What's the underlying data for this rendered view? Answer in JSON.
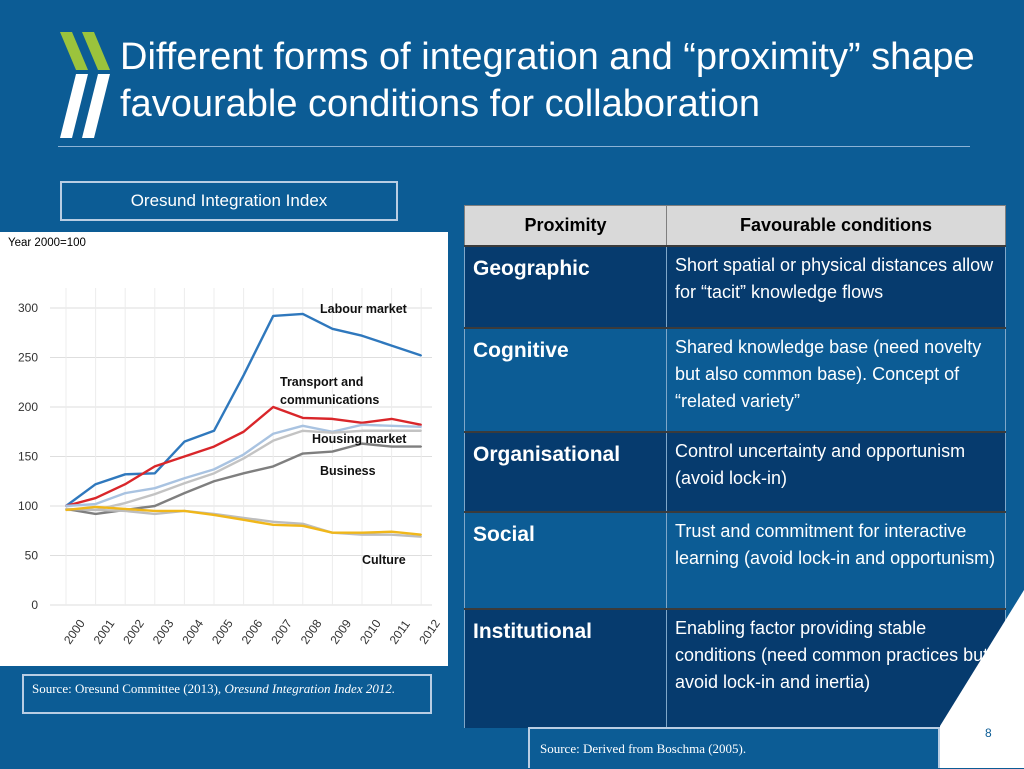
{
  "slide": {
    "title": "Different forms of integration and “proximity” shape favourable conditions for collaboration",
    "page_number": "8"
  },
  "chart_panel": {
    "box_title": "Oresund Integration Index",
    "year_note": "Year 2000=100",
    "source_prefix": "Source: Oresund Committee (2013), ",
    "source_italic": "Oresund Integration Index 2012."
  },
  "chart_data": {
    "type": "line",
    "title": "Oresund Integration Index",
    "ylabel": "Year 2000=100",
    "xlabel": "",
    "x": [
      "2000",
      "2001",
      "2002",
      "2003",
      "2004",
      "2005",
      "2006",
      "2007",
      "2008",
      "2009",
      "2010",
      "2011",
      "2012"
    ],
    "yticks": [
      0,
      50,
      100,
      150,
      200,
      250,
      300
    ],
    "ylim": [
      0,
      320
    ],
    "grid": true,
    "series": [
      {
        "name": "Labour market",
        "color": "#2f78bd",
        "values": [
          100,
          122,
          132,
          133,
          165,
          176,
          232,
          292,
          294,
          279,
          272,
          262,
          252
        ]
      },
      {
        "name": "Transport and communications",
        "color": "#d9262a",
        "values": [
          100,
          108,
          122,
          140,
          150,
          160,
          175,
          200,
          189,
          188,
          184,
          188,
          182
        ]
      },
      {
        "name": "Housing market",
        "color": "#a9c3e1",
        "values": [
          100,
          102,
          113,
          118,
          128,
          137,
          152,
          173,
          181,
          175,
          182,
          181,
          180
        ]
      },
      {
        "name": "",
        "color": "#c3c3c3",
        "values": [
          96,
          96,
          103,
          112,
          123,
          133,
          148,
          166,
          176,
          174,
          176,
          176,
          176
        ]
      },
      {
        "name": "Business",
        "color": "#7f7f7f",
        "values": [
          97,
          92,
          96,
          100,
          113,
          125,
          133,
          140,
          153,
          155,
          163,
          160,
          160
        ]
      },
      {
        "name": "",
        "color": "#bdbdbd",
        "values": [
          97,
          96,
          95,
          92,
          95,
          92,
          88,
          84,
          82,
          73,
          71,
          71,
          69
        ]
      },
      {
        "name": "Culture",
        "color": "#f0b71a",
        "values": [
          96,
          99,
          97,
          95,
          95,
          91,
          86,
          81,
          80,
          73,
          73,
          74,
          71
        ]
      }
    ],
    "annotations": [
      "Labour market",
      "Transport and",
      "communications",
      "Housing market",
      "Business",
      "Culture"
    ]
  },
  "table": {
    "headers": [
      "Proximity",
      "Favourable conditions"
    ],
    "rows": [
      {
        "key": "Geographic",
        "value": "Short spatial or physical distances  allow for “tacit” knowledge flows"
      },
      {
        "key": "Cognitive",
        "value": "Shared knowledge base (need novelty but also common base). Concept of “related variety”"
      },
      {
        "key": "Organisational",
        "value": "Control uncertainty and opportunism (avoid lock-in)"
      },
      {
        "key": "Social",
        "value": "Trust and commitment for interactive learning (avoid lock-in and opportunism)"
      },
      {
        "key": "Institutional",
        "value": "Enabling factor providing stable conditions (need common practices  but avoid lock-in and inertia)"
      }
    ],
    "source": "Source:  Derived from Boschma (2005)."
  },
  "colors": {
    "background": "#0c5c95",
    "dark_row": "#063b6e",
    "header_row": "#d9d9d9",
    "logo_green": "#9bc33c"
  }
}
